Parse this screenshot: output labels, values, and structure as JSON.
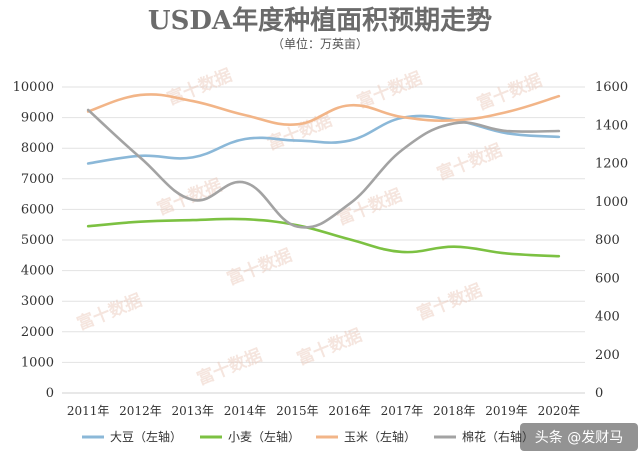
{
  "chart_data": {
    "type": "line",
    "title": "USDA年度种植面积预期走势",
    "subtitle": "（单位：万英亩）",
    "categories": [
      "2011年",
      "2012年",
      "2013年",
      "2014年",
      "2015年",
      "2016年",
      "2017年",
      "2018年",
      "2019年",
      "2020年"
    ],
    "y_left": {
      "ticks": [
        "0",
        "1000",
        "2000",
        "3000",
        "4000",
        "5000",
        "6000",
        "7000",
        "8000",
        "9000",
        "10000"
      ],
      "ylim": [
        0,
        10000
      ]
    },
    "y_right": {
      "ticks": [
        "0",
        "200",
        "400",
        "600",
        "800",
        "1000",
        "1200",
        "1400",
        "1600"
      ],
      "ylim": [
        0,
        1600
      ]
    },
    "grid": true,
    "legend_position": "bottom",
    "series": [
      {
        "name": "大豆（左轴）",
        "axis": "left",
        "color": "#8bb8d8",
        "values": [
          7500,
          7750,
          7700,
          8300,
          8250,
          8250,
          8990,
          8920,
          8490,
          8370
        ]
      },
      {
        "name": "小麦（左轴）",
        "axis": "left",
        "color": "#7cc142",
        "values": [
          5450,
          5600,
          5650,
          5680,
          5480,
          5020,
          4610,
          4780,
          4560,
          4470
        ]
      },
      {
        "name": "玉米（左轴）",
        "axis": "left",
        "color": "#f2b588",
        "values": [
          9200,
          9740,
          9540,
          9080,
          8780,
          9400,
          9020,
          8910,
          9180,
          9700
        ]
      },
      {
        "name": "棉花（右轴）",
        "axis": "right",
        "color": "#a3a3a3",
        "values": [
          1480,
          1230,
          1010,
          1100,
          870,
          990,
          1270,
          1410,
          1370,
          1370
        ]
      }
    ]
  },
  "watermark": "富十数据",
  "credit": "头条 @发财马"
}
